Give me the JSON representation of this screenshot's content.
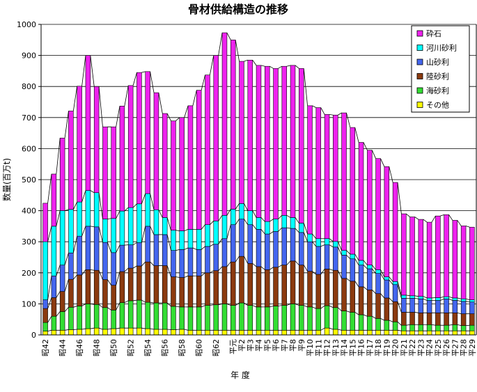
{
  "chart_data": {
    "type": "bar",
    "stacked": true,
    "title": "骨材供給構造の推移",
    "xlabel": "年 度",
    "ylabel": "数量(百万t)",
    "ylim": [
      0,
      1000
    ],
    "yticks": [
      "0",
      "100",
      "200",
      "300",
      "400",
      "500",
      "600",
      "700",
      "800",
      "900",
      "1000"
    ],
    "grid": true,
    "legend_position": "top-right",
    "categories": [
      "昭42",
      "昭43",
      "昭44",
      "昭45",
      "昭46",
      "昭47",
      "昭48",
      "昭49",
      "昭50",
      "昭51",
      "昭52",
      "昭53",
      "昭54",
      "昭55",
      "昭56",
      "昭57",
      "昭58",
      "昭59",
      "昭60",
      "昭61",
      "昭62",
      "昭63",
      "平元",
      "平2",
      "平3",
      "平4",
      "平5",
      "平6",
      "平7",
      "平8",
      "平9",
      "平10",
      "平11",
      "平12",
      "平13",
      "平14",
      "平15",
      "平16",
      "平17",
      "平18",
      "平19",
      "平20",
      "平21",
      "平22",
      "平23",
      "平24",
      "平25",
      "平26",
      "平27",
      "平28",
      "平29"
    ],
    "x_tick_labels": [
      "昭42",
      "昭44",
      "昭46",
      "昭48",
      "昭50",
      "昭52",
      "昭54",
      "昭56",
      "昭58",
      "昭60",
      "昭62",
      "平元",
      "平2",
      "平3",
      "平4",
      "平5",
      "平6",
      "平7",
      "平8",
      "平9",
      "平10",
      "平11",
      "平12",
      "平13",
      "平14",
      "平15",
      "平16",
      "平17",
      "平18",
      "平19",
      "平20",
      "平21",
      "平22",
      "平23",
      "平24",
      "平25",
      "平26",
      "平27",
      "平28",
      "平29"
    ],
    "series": [
      {
        "name": "その他",
        "color": "#FFFF00",
        "values": [
          12,
          15,
          15,
          17,
          18,
          20,
          22,
          18,
          20,
          22,
          22,
          22,
          20,
          18,
          18,
          17,
          18,
          15,
          15,
          15,
          15,
          15,
          15,
          15,
          15,
          15,
          15,
          15,
          15,
          15,
          15,
          15,
          15,
          22,
          18,
          15,
          15,
          15,
          15,
          15,
          15,
          15,
          13,
          13,
          13,
          13,
          13,
          13,
          13,
          13,
          13
        ]
      },
      {
        "name": "海砂利",
        "color": "#33DD33",
        "values": [
          28,
          45,
          60,
          72,
          75,
          80,
          76,
          70,
          60,
          82,
          88,
          90,
          85,
          85,
          85,
          75,
          72,
          75,
          75,
          80,
          82,
          85,
          80,
          88,
          80,
          75,
          75,
          78,
          80,
          85,
          80,
          75,
          70,
          72,
          70,
          62,
          58,
          50,
          45,
          38,
          32,
          27,
          18,
          20,
          20,
          20,
          18,
          18,
          20,
          17,
          18
        ]
      },
      {
        "name": "陸砂利",
        "color": "#8B3A0F",
        "values": [
          45,
          60,
          65,
          90,
          100,
          110,
          110,
          90,
          80,
          100,
          105,
          110,
          130,
          120,
          120,
          95,
          95,
          100,
          100,
          105,
          110,
          120,
          140,
          150,
          135,
          130,
          120,
          125,
          130,
          138,
          130,
          115,
          110,
          118,
          120,
          105,
          100,
          90,
          85,
          80,
          72,
          65,
          42,
          40,
          38,
          38,
          40,
          40,
          38,
          38,
          37
        ]
      },
      {
        "name": "山砂利",
        "color": "#4466EE",
        "values": [
          28,
          70,
          85,
          85,
          125,
          140,
          140,
          120,
          105,
          85,
          75,
          75,
          115,
          100,
          100,
          85,
          90,
          90,
          85,
          85,
          85,
          90,
          120,
          120,
          125,
          120,
          115,
          115,
          120,
          105,
          105,
          95,
          90,
          78,
          75,
          75,
          72,
          70,
          68,
          65,
          58,
          55,
          45,
          45,
          45,
          40,
          40,
          45,
          40,
          40,
          38
        ]
      },
      {
        "name": "河川砂利",
        "color": "#00FFFF",
        "values": [
          187,
          160,
          175,
          140,
          110,
          115,
          110,
          75,
          110,
          110,
          120,
          125,
          105,
          80,
          55,
          65,
          60,
          60,
          65,
          70,
          75,
          75,
          50,
          50,
          45,
          38,
          40,
          40,
          40,
          35,
          30,
          25,
          25,
          20,
          18,
          15,
          15,
          15,
          12,
          12,
          10,
          10,
          10,
          8,
          8,
          8,
          9,
          7,
          8,
          8,
          7
        ]
      },
      {
        "name": "砕石",
        "color": "#EE22EE",
        "values": [
          124,
          168,
          234,
          317,
          373,
          435,
          342,
          297,
          295,
          338,
          393,
          423,
          393,
          377,
          335,
          352,
          365,
          398,
          448,
          482,
          533,
          588,
          545,
          458,
          485,
          490,
          500,
          485,
          480,
          490,
          498,
          413,
          422,
          400,
          407,
          443,
          408,
          380,
          370,
          358,
          355,
          319,
          262,
          254,
          248,
          244,
          263,
          264,
          250,
          235,
          234
        ]
      }
    ]
  }
}
